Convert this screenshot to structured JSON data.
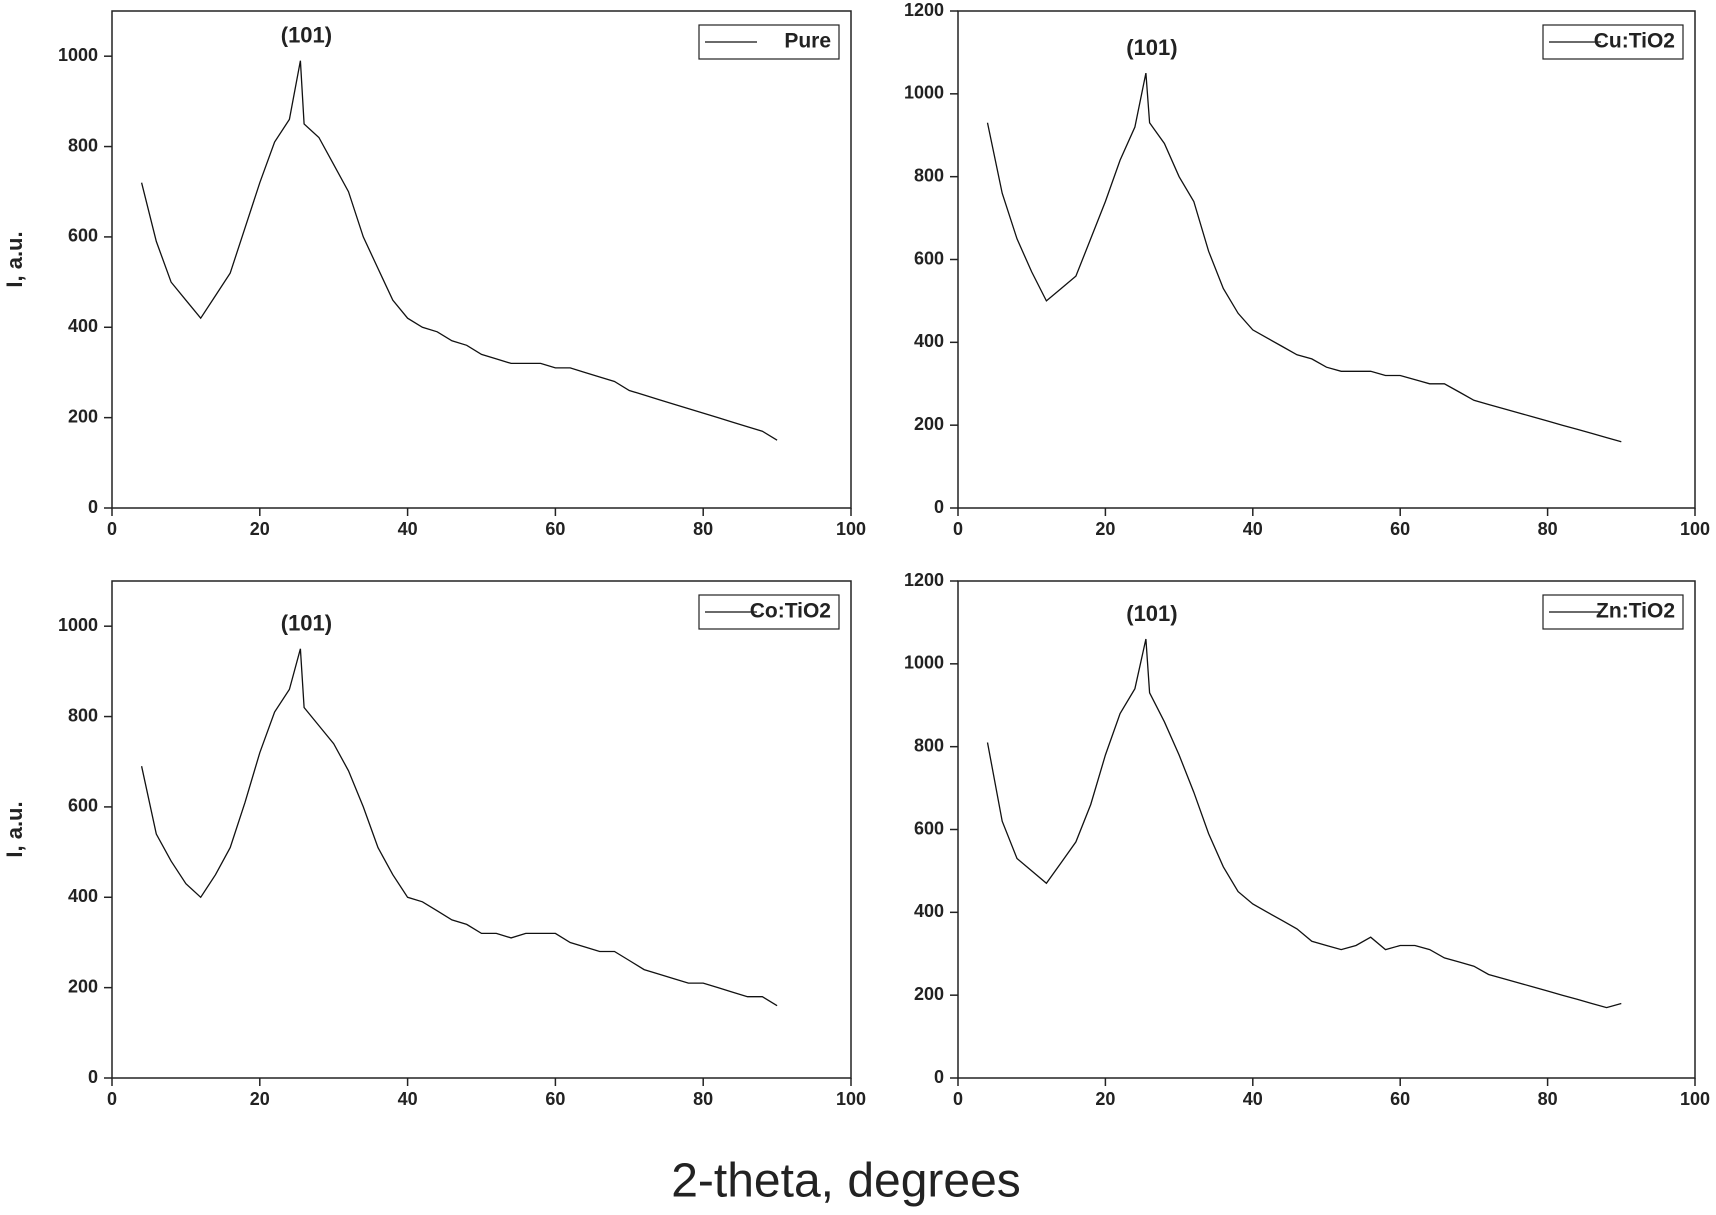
{
  "xlabel": "2-theta, degrees",
  "chart_data": [
    {
      "type": "line",
      "ylabel": "I, a.u.",
      "annotation": "(101)",
      "legend": "upper right",
      "grid": false,
      "xlim": [
        0,
        100
      ],
      "xticks": [
        0,
        20,
        40,
        60,
        80,
        100
      ],
      "ylim": [
        0,
        1100
      ],
      "yticks": [
        0,
        200,
        400,
        600,
        800,
        1000
      ],
      "x": [
        4,
        6,
        8,
        10,
        12,
        14,
        16,
        18,
        20,
        22,
        24,
        25.5,
        26,
        28,
        30,
        32,
        34,
        36,
        38,
        40,
        42,
        44,
        46,
        48,
        50,
        52,
        54,
        56,
        58,
        60,
        62,
        64,
        66,
        68,
        70,
        72,
        74,
        76,
        78,
        80,
        82,
        84,
        86,
        88,
        90
      ],
      "series": [
        {
          "name": "Pure",
          "color": "#111111",
          "values": [
            720,
            590,
            500,
            460,
            420,
            470,
            520,
            620,
            720,
            810,
            860,
            990,
            850,
            820,
            760,
            700,
            600,
            530,
            460,
            420,
            400,
            390,
            370,
            360,
            340,
            330,
            320,
            320,
            320,
            310,
            310,
            300,
            290,
            280,
            260,
            250,
            240,
            230,
            220,
            210,
            200,
            190,
            180,
            170,
            150
          ]
        }
      ]
    },
    {
      "type": "line",
      "annotation": "(101)",
      "legend": "upper right",
      "grid": false,
      "xlim": [
        0,
        100
      ],
      "xticks": [
        0,
        20,
        40,
        60,
        80,
        100
      ],
      "ylim": [
        0,
        1200
      ],
      "yticks": [
        0,
        200,
        400,
        600,
        800,
        1000,
        1200
      ],
      "x": [
        4,
        6,
        8,
        10,
        12,
        14,
        16,
        18,
        20,
        22,
        24,
        25.5,
        26,
        28,
        30,
        32,
        34,
        36,
        38,
        40,
        42,
        44,
        46,
        48,
        50,
        52,
        54,
        56,
        58,
        60,
        62,
        64,
        66,
        68,
        70,
        72,
        74,
        76,
        78,
        80,
        82,
        84,
        86,
        88,
        90
      ],
      "series": [
        {
          "name": "Cu:TiO2",
          "color": "#111111",
          "values": [
            930,
            760,
            650,
            570,
            500,
            530,
            560,
            650,
            740,
            840,
            920,
            1050,
            930,
            880,
            800,
            740,
            620,
            530,
            470,
            430,
            410,
            390,
            370,
            360,
            340,
            330,
            330,
            330,
            320,
            320,
            310,
            300,
            300,
            280,
            260,
            250,
            240,
            230,
            220,
            210,
            200,
            190,
            180,
            170,
            160
          ]
        }
      ]
    },
    {
      "type": "line",
      "ylabel": "I, a.u.",
      "annotation": "(101)",
      "legend": "upper right",
      "grid": false,
      "xlim": [
        0,
        100
      ],
      "xticks": [
        0,
        20,
        40,
        60,
        80,
        100
      ],
      "ylim": [
        0,
        1100
      ],
      "yticks": [
        0,
        200,
        400,
        600,
        800,
        1000
      ],
      "x": [
        4,
        6,
        8,
        10,
        12,
        14,
        16,
        18,
        20,
        22,
        24,
        25.5,
        26,
        28,
        30,
        32,
        34,
        36,
        38,
        40,
        42,
        44,
        46,
        48,
        50,
        52,
        54,
        56,
        58,
        60,
        62,
        64,
        66,
        68,
        70,
        72,
        74,
        76,
        78,
        80,
        82,
        84,
        86,
        88,
        90
      ],
      "series": [
        {
          "name": "Co:TiO2",
          "color": "#111111",
          "values": [
            690,
            540,
            480,
            430,
            400,
            450,
            510,
            610,
            720,
            810,
            860,
            950,
            820,
            780,
            740,
            680,
            600,
            510,
            450,
            400,
            390,
            370,
            350,
            340,
            320,
            320,
            310,
            320,
            320,
            320,
            300,
            290,
            280,
            280,
            260,
            240,
            230,
            220,
            210,
            210,
            200,
            190,
            180,
            180,
            160
          ]
        }
      ]
    },
    {
      "type": "line",
      "annotation": "(101)",
      "legend": "upper right",
      "grid": false,
      "xlim": [
        0,
        100
      ],
      "xticks": [
        0,
        20,
        40,
        60,
        80,
        100
      ],
      "ylim": [
        0,
        1200
      ],
      "yticks": [
        0,
        200,
        400,
        600,
        800,
        1000,
        1200
      ],
      "x": [
        4,
        6,
        8,
        10,
        12,
        14,
        16,
        18,
        20,
        22,
        24,
        25.5,
        26,
        28,
        30,
        32,
        34,
        36,
        38,
        40,
        42,
        44,
        46,
        48,
        50,
        52,
        54,
        56,
        58,
        60,
        62,
        64,
        66,
        68,
        70,
        72,
        74,
        76,
        78,
        80,
        82,
        84,
        86,
        88,
        90
      ],
      "series": [
        {
          "name": "Zn:TiO2",
          "color": "#111111",
          "values": [
            810,
            620,
            530,
            500,
            470,
            520,
            570,
            660,
            780,
            880,
            940,
            1060,
            930,
            860,
            780,
            690,
            590,
            510,
            450,
            420,
            400,
            380,
            360,
            330,
            320,
            310,
            320,
            340,
            310,
            320,
            320,
            310,
            290,
            280,
            270,
            250,
            240,
            230,
            220,
            210,
            200,
            190,
            180,
            170,
            180
          ]
        }
      ]
    }
  ]
}
